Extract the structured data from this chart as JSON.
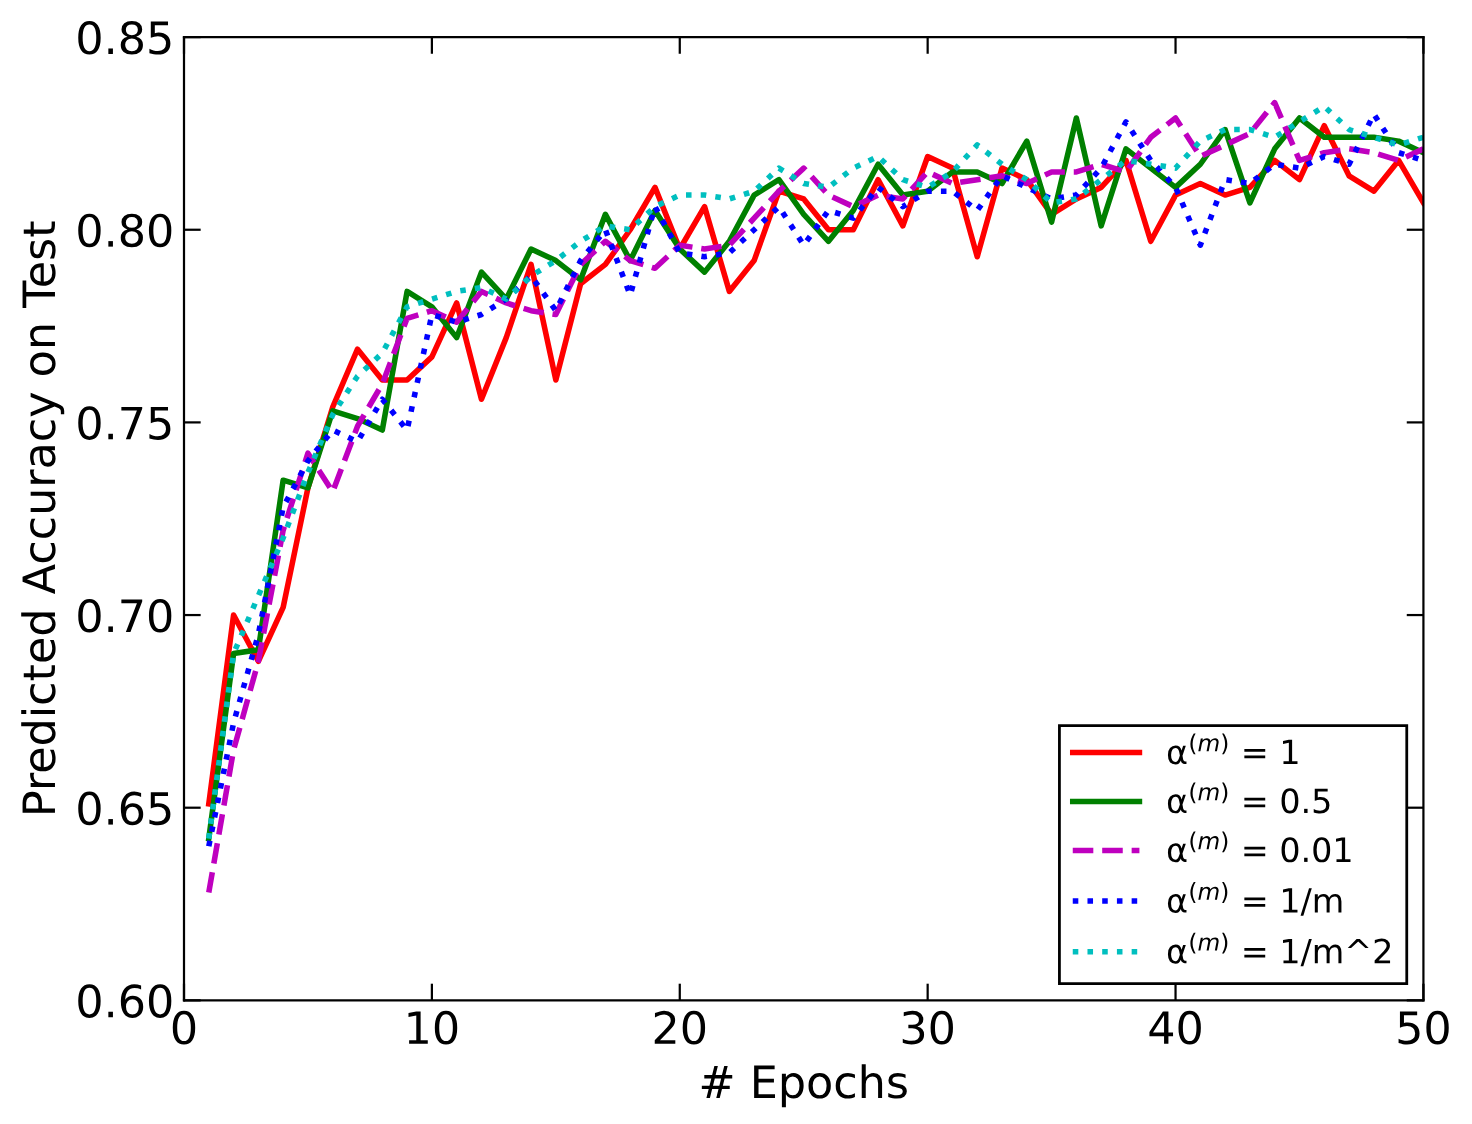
{
  "chart_data": {
    "type": "line",
    "xlabel": "# Epochs",
    "ylabel": "Predicted Accuracy on Test",
    "x": [
      1,
      2,
      3,
      4,
      5,
      6,
      7,
      8,
      9,
      10,
      11,
      12,
      13,
      14,
      15,
      16,
      17,
      18,
      19,
      20,
      21,
      22,
      23,
      24,
      25,
      26,
      27,
      28,
      29,
      30,
      31,
      32,
      33,
      34,
      35,
      36,
      37,
      38,
      39,
      40,
      41,
      42,
      43,
      44,
      45,
      46,
      47,
      48,
      49,
      50
    ],
    "xlim": [
      0,
      50
    ],
    "xticks": [
      0,
      10,
      20,
      30,
      40,
      50
    ],
    "ylim": [
      0.6,
      0.85
    ],
    "yticks": [
      {
        "value": 0.6,
        "label": "0.60"
      },
      {
        "value": 0.65,
        "label": "0.65"
      },
      {
        "value": 0.7,
        "label": "0.70"
      },
      {
        "value": 0.75,
        "label": "0.75"
      },
      {
        "value": 0.8,
        "label": "0.80"
      },
      {
        "value": 0.85,
        "label": "0.85"
      }
    ],
    "grid": false,
    "legend": "bottom right",
    "series": [
      {
        "name": "α$^{(m)}$ = 1",
        "color": "#ff0000",
        "line_style": "solid",
        "values": [
          0.651,
          0.7,
          0.688,
          0.702,
          0.733,
          0.754,
          0.769,
          0.761,
          0.761,
          0.767,
          0.781,
          0.756,
          0.772,
          0.791,
          0.761,
          0.786,
          0.791,
          0.8,
          0.811,
          0.795,
          0.806,
          0.784,
          0.792,
          0.81,
          0.808,
          0.8,
          0.8,
          0.813,
          0.801,
          0.819,
          0.816,
          0.793,
          0.816,
          0.813,
          0.804,
          0.808,
          0.811,
          0.818,
          0.797,
          0.809,
          0.812,
          0.809,
          0.811,
          0.818,
          0.813,
          0.827,
          0.814,
          0.81,
          0.818,
          0.807
        ]
      },
      {
        "name": "α$^{(m)}$ = 0.5",
        "color": "#008000",
        "line_style": "solid",
        "values": [
          0.642,
          0.69,
          0.691,
          0.735,
          0.733,
          0.753,
          0.751,
          0.748,
          0.784,
          0.78,
          0.772,
          0.789,
          0.782,
          0.795,
          0.792,
          0.787,
          0.804,
          0.792,
          0.805,
          0.795,
          0.789,
          0.797,
          0.809,
          0.813,
          0.804,
          0.797,
          0.805,
          0.817,
          0.809,
          0.81,
          0.815,
          0.815,
          0.812,
          0.823,
          0.802,
          0.829,
          0.801,
          0.821,
          0.816,
          0.811,
          0.817,
          0.826,
          0.807,
          0.821,
          0.829,
          0.824,
          0.824,
          0.824,
          0.823,
          0.82
        ]
      },
      {
        "name": "α$^{(m)}$ = 0.01",
        "color": "#bf00bf",
        "line_style": "dashed",
        "values": [
          0.628,
          0.665,
          0.688,
          0.722,
          0.742,
          0.732,
          0.749,
          0.76,
          0.777,
          0.779,
          0.776,
          0.784,
          0.781,
          0.779,
          0.778,
          0.791,
          0.797,
          0.792,
          0.79,
          0.796,
          0.795,
          0.796,
          0.803,
          0.81,
          0.816,
          0.809,
          0.806,
          0.809,
          0.808,
          0.815,
          0.812,
          0.813,
          0.814,
          0.812,
          0.815,
          0.815,
          0.817,
          0.815,
          0.824,
          0.829,
          0.819,
          0.822,
          0.825,
          0.833,
          0.818,
          0.82,
          0.821,
          0.82,
          0.818,
          0.821
        ]
      },
      {
        "name": "α$^{(m)}$ = 1/m",
        "color": "#0000ff",
        "line_style": "dotted",
        "values": [
          0.64,
          0.672,
          0.695,
          0.728,
          0.74,
          0.748,
          0.745,
          0.756,
          0.748,
          0.778,
          0.776,
          0.778,
          0.782,
          0.788,
          0.779,
          0.792,
          0.8,
          0.783,
          0.806,
          0.794,
          0.793,
          0.794,
          0.8,
          0.806,
          0.796,
          0.805,
          0.803,
          0.811,
          0.806,
          0.81,
          0.81,
          0.805,
          0.814,
          0.811,
          0.808,
          0.809,
          0.816,
          0.828,
          0.818,
          0.811,
          0.796,
          0.813,
          0.812,
          0.817,
          0.816,
          0.819,
          0.817,
          0.83,
          0.82,
          0.818
        ]
      },
      {
        "name": "α$^{(m)}$ = 1/m^2",
        "color": "#00bfbf",
        "line_style": "dotted",
        "values": [
          0.642,
          0.69,
          0.705,
          0.72,
          0.737,
          0.752,
          0.762,
          0.768,
          0.78,
          0.782,
          0.784,
          0.785,
          0.782,
          0.788,
          0.792,
          0.797,
          0.801,
          0.8,
          0.806,
          0.809,
          0.809,
          0.808,
          0.81,
          0.816,
          0.812,
          0.811,
          0.816,
          0.819,
          0.813,
          0.811,
          0.815,
          0.822,
          0.817,
          0.813,
          0.807,
          0.808,
          0.813,
          0.818,
          0.817,
          0.816,
          0.823,
          0.826,
          0.826,
          0.824,
          0.828,
          0.832,
          0.826,
          0.824,
          0.822,
          0.824
        ]
      }
    ]
  }
}
